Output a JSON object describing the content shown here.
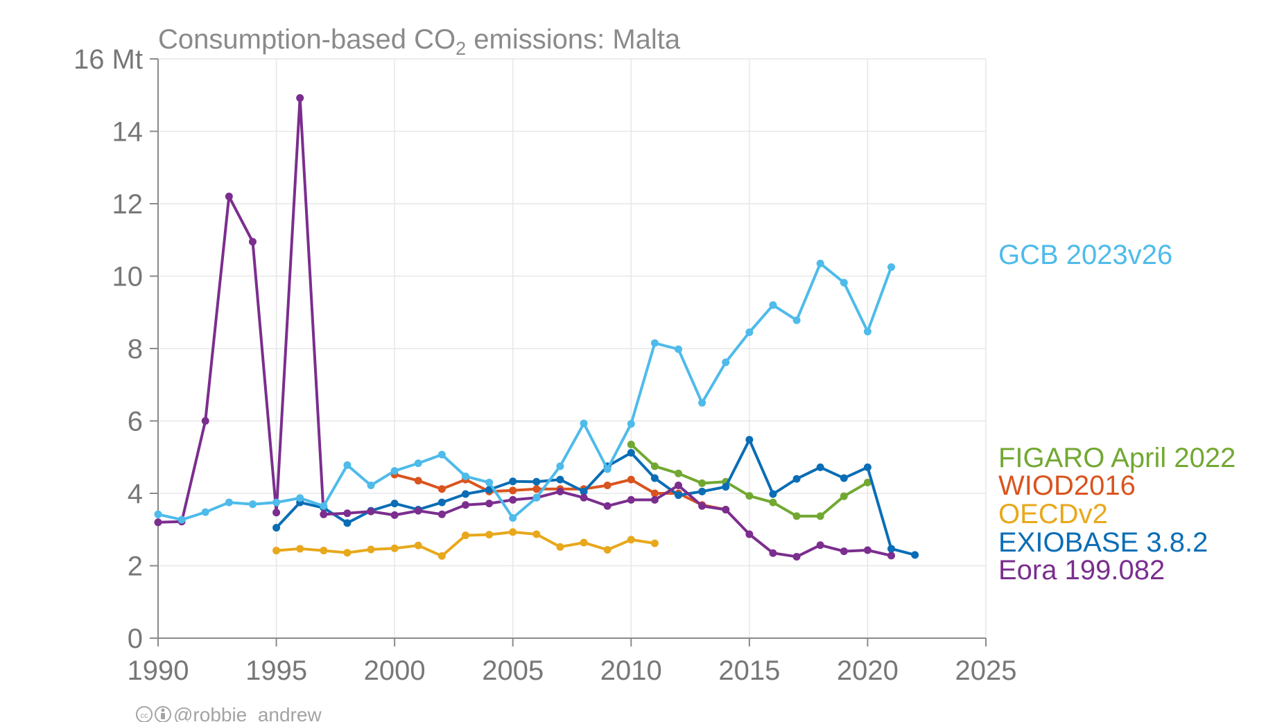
{
  "chart_data": {
    "type": "line",
    "title": {
      "prefix": "Consumption-based CO",
      "subscript": "2",
      "suffix": " emissions: Malta"
    },
    "xlabel": "",
    "ylabel": "",
    "xlim": [
      1990,
      2025
    ],
    "ylim": [
      0,
      16
    ],
    "x_ticks": [
      1990,
      1995,
      2000,
      2005,
      2010,
      2015,
      2020,
      2025
    ],
    "y_ticks": [
      {
        "value": 0,
        "label": "0"
      },
      {
        "value": 2,
        "label": "2"
      },
      {
        "value": 4,
        "label": "4"
      },
      {
        "value": 6,
        "label": "6"
      },
      {
        "value": 8,
        "label": "8"
      },
      {
        "value": 10,
        "label": "10"
      },
      {
        "value": 12,
        "label": "12"
      },
      {
        "value": 14,
        "label": "14"
      },
      {
        "value": 16,
        "label": "16 Mt"
      }
    ],
    "grid": true,
    "legend_placement": "right",
    "series": [
      {
        "name": "OECDv2",
        "color": "#E8A81C",
        "x": [
          1995,
          1996,
          1997,
          1998,
          1999,
          2000,
          2001,
          2002,
          2003,
          2004,
          2005,
          2006,
          2007,
          2008,
          2009,
          2010,
          2011
        ],
        "y": [
          2.42,
          2.47,
          2.42,
          2.36,
          2.45,
          2.48,
          2.56,
          2.27,
          2.84,
          2.86,
          2.93,
          2.87,
          2.52,
          2.64,
          2.44,
          2.72,
          2.62
        ]
      },
      {
        "name": "WIOD2016",
        "color": "#D9541E",
        "x": [
          2000,
          2001,
          2002,
          2003,
          2004,
          2005,
          2006,
          2007,
          2008,
          2009,
          2010,
          2011,
          2012,
          2013,
          2014
        ],
        "y": [
          4.52,
          4.35,
          4.12,
          4.38,
          4.05,
          4.08,
          4.12,
          4.12,
          4.12,
          4.22,
          4.38,
          4.0,
          4.0,
          3.68,
          3.55
        ]
      },
      {
        "name": "FIGARO April 2022",
        "color": "#72A832",
        "x": [
          2010,
          2011,
          2012,
          2013,
          2014,
          2015,
          2016,
          2017,
          2018,
          2019,
          2020
        ],
        "y": [
          5.35,
          4.75,
          4.55,
          4.28,
          4.32,
          3.93,
          3.75,
          3.37,
          3.37,
          3.92,
          4.3
        ]
      },
      {
        "name": "EXIOBASE 3.8.2",
        "color": "#0A6DB5",
        "x": [
          1995,
          1996,
          1997,
          1998,
          1999,
          2000,
          2001,
          2002,
          2003,
          2004,
          2005,
          2006,
          2007,
          2008,
          2009,
          2010,
          2011,
          2012,
          2013,
          2014,
          2015,
          2016,
          2017,
          2018,
          2019,
          2020,
          2021,
          2022
        ],
        "y": [
          3.05,
          3.75,
          3.6,
          3.18,
          3.52,
          3.72,
          3.55,
          3.75,
          3.98,
          4.1,
          4.33,
          4.32,
          4.38,
          4.05,
          4.75,
          5.12,
          4.42,
          3.95,
          4.05,
          4.18,
          5.48,
          3.98,
          4.4,
          4.72,
          4.42,
          4.72,
          2.47,
          2.3
        ]
      },
      {
        "name": "Eora 199.082",
        "color": "#7B2E8E",
        "x": [
          1990,
          1991,
          1992,
          1993,
          1994,
          1995,
          1996,
          1997,
          1998,
          1999,
          2000,
          2001,
          2002,
          2003,
          2004,
          2005,
          2006,
          2007,
          2008,
          2009,
          2010,
          2011,
          2012,
          2013,
          2014,
          2015,
          2016,
          2017,
          2018,
          2019,
          2020,
          2021
        ],
        "y": [
          3.2,
          3.22,
          6.0,
          12.2,
          10.95,
          3.47,
          14.92,
          3.42,
          3.45,
          3.5,
          3.4,
          3.52,
          3.42,
          3.68,
          3.72,
          3.82,
          3.88,
          4.05,
          3.88,
          3.65,
          3.82,
          3.82,
          4.22,
          3.65,
          3.55,
          2.87,
          2.35,
          2.25,
          2.57,
          2.4,
          2.43,
          2.28
        ]
      },
      {
        "name": "GCB 2023v26",
        "color": "#4EBBEA",
        "x": [
          1990,
          1991,
          1992,
          1993,
          1994,
          1995,
          1996,
          1997,
          1998,
          1999,
          2000,
          2001,
          2002,
          2003,
          2004,
          2005,
          2006,
          2007,
          2008,
          2009,
          2010,
          2011,
          2012,
          2013,
          2014,
          2015,
          2016,
          2017,
          2018,
          2019,
          2020,
          2021
        ],
        "y": [
          3.42,
          3.27,
          3.48,
          3.75,
          3.7,
          3.75,
          3.87,
          3.65,
          4.78,
          4.22,
          4.62,
          4.83,
          5.07,
          4.47,
          4.3,
          3.32,
          3.88,
          4.75,
          5.93,
          4.67,
          5.92,
          8.15,
          7.98,
          6.5,
          7.62,
          8.45,
          9.2,
          8.78,
          10.35,
          9.82,
          8.47,
          10.25
        ]
      }
    ],
    "legend_order": [
      "GCB 2023v26",
      "FIGARO April 2022",
      "WIOD2016",
      "OECDv2",
      "EXIOBASE 3.8.2",
      "Eora 199.082"
    ]
  },
  "credit": {
    "icons": [
      "cc-icon",
      "by-icon"
    ],
    "text": "@robbie_andrew"
  }
}
